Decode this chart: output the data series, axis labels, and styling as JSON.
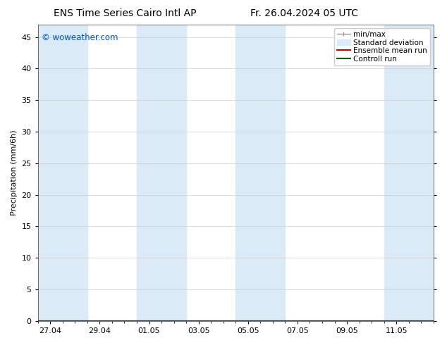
{
  "title_left": "ENS Time Series Cairo Intl AP",
  "title_right": "Fr. 26.04.2024 05 UTC",
  "ylabel": "Precipitation (mm/6h)",
  "watermark": "© woweather.com",
  "watermark_color": "#0055cc",
  "background_color": "#ffffff",
  "plot_bg_color": "#ffffff",
  "shaded_band_color": "#daeaf7",
  "ylim": [
    0,
    47
  ],
  "yticks": [
    0,
    5,
    10,
    15,
    20,
    25,
    30,
    35,
    40,
    45
  ],
  "x_tick_labels": [
    "27.04",
    "29.04",
    "01.05",
    "03.05",
    "05.05",
    "07.05",
    "09.05",
    "11.05"
  ],
  "x_tick_positions": [
    0.5,
    2.5,
    4.5,
    6.5,
    8.5,
    10.5,
    12.5,
    14.5
  ],
  "xlim": [
    0,
    16
  ],
  "shaded_bands": [
    {
      "start": 0.0,
      "end": 2.0
    },
    {
      "start": 4.0,
      "end": 6.0
    },
    {
      "start": 8.0,
      "end": 10.0
    },
    {
      "start": 14.0,
      "end": 16.0
    }
  ],
  "legend_entries": [
    {
      "label": "min/max",
      "color": "#aaaaaa",
      "lw": 1,
      "type": "errorbar"
    },
    {
      "label": "Standard deviation",
      "color": "#daeaf7",
      "lw": 8,
      "type": "bar"
    },
    {
      "label": "Ensemble mean run",
      "color": "#cc0000",
      "lw": 1.5,
      "type": "line"
    },
    {
      "label": "Controll run",
      "color": "#006600",
      "lw": 1.5,
      "type": "line"
    }
  ],
  "title_fontsize": 10,
  "tick_fontsize": 8,
  "legend_fontsize": 7.5,
  "ylabel_fontsize": 8
}
